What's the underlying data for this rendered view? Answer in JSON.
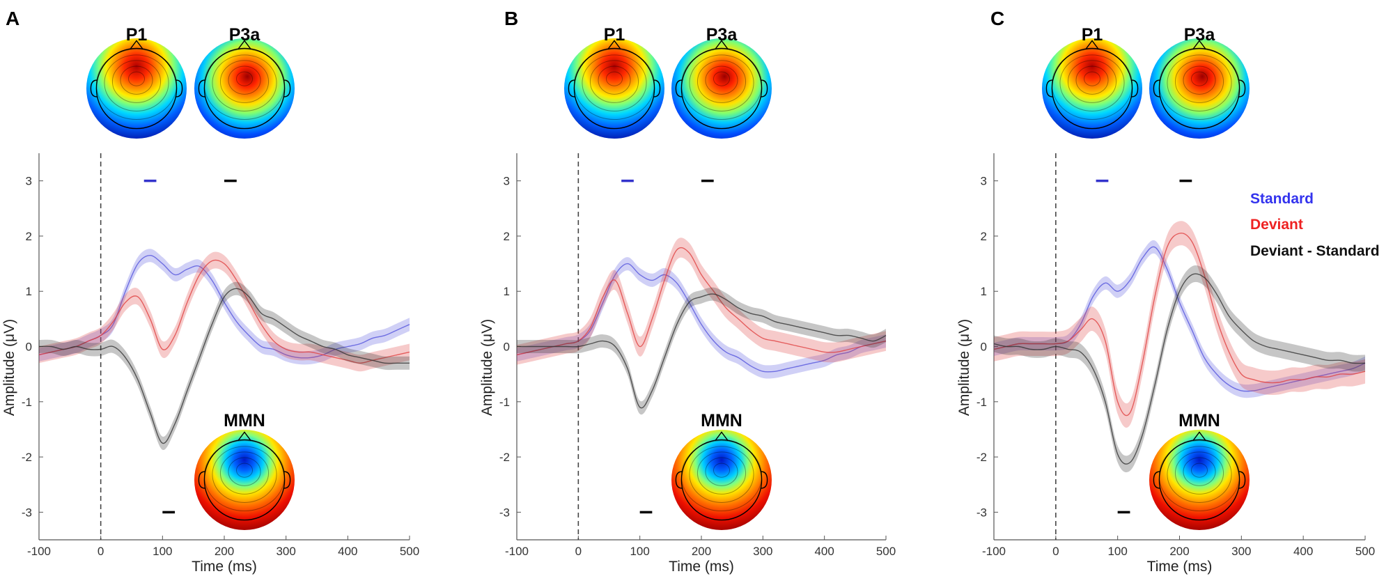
{
  "chart_data": [
    {
      "panel": "A",
      "type": "line",
      "xlabel": "Time (ms)",
      "ylabel": "Amplitude (μV)",
      "xlim": [
        -100,
        500
      ],
      "ylim": [
        -3.5,
        3.5
      ],
      "xticks": [
        -100,
        0,
        100,
        200,
        300,
        400,
        500
      ],
      "yticks": [
        -3,
        -2,
        -1,
        0,
        1,
        2,
        3
      ],
      "x": [
        -100,
        -80,
        -60,
        -40,
        -20,
        0,
        20,
        40,
        60,
        80,
        100,
        120,
        140,
        160,
        180,
        200,
        220,
        240,
        260,
        280,
        300,
        320,
        340,
        360,
        380,
        400,
        420,
        440,
        460,
        480,
        500
      ],
      "series": [
        {
          "name": "Standard",
          "color": "#5555dd",
          "values": [
            -0.15,
            -0.1,
            -0.05,
            0.0,
            0.1,
            0.2,
            0.4,
            1.0,
            1.5,
            1.65,
            1.5,
            1.3,
            1.4,
            1.45,
            1.2,
            0.8,
            0.45,
            0.2,
            0.0,
            -0.05,
            -0.15,
            -0.2,
            -0.2,
            -0.15,
            -0.05,
            0.0,
            0.05,
            0.15,
            0.2,
            0.3,
            0.4
          ],
          "band": 0.12
        },
        {
          "name": "Deviant",
          "color": "#e04040",
          "values": [
            -0.15,
            -0.1,
            -0.05,
            0.0,
            0.1,
            0.2,
            0.45,
            0.8,
            0.9,
            0.5,
            -0.05,
            0.2,
            0.8,
            1.3,
            1.55,
            1.5,
            1.2,
            0.8,
            0.4,
            0.1,
            -0.05,
            -0.1,
            -0.1,
            -0.15,
            -0.2,
            -0.25,
            -0.3,
            -0.25,
            -0.2,
            -0.15,
            -0.1
          ],
          "band": 0.15
        },
        {
          "name": "Deviant - Standard",
          "color": "#333333",
          "values": [
            0.0,
            0.0,
            -0.05,
            0.0,
            -0.05,
            -0.05,
            0.0,
            -0.2,
            -0.6,
            -1.2,
            -1.75,
            -1.4,
            -0.8,
            -0.2,
            0.4,
            0.9,
            1.05,
            0.9,
            0.6,
            0.5,
            0.35,
            0.2,
            0.1,
            0.0,
            -0.05,
            -0.15,
            -0.2,
            -0.25,
            -0.3,
            -0.3,
            -0.3
          ],
          "band": 0.12
        }
      ],
      "component_bars": [
        {
          "name": "P1",
          "color": "#3333cc",
          "x1": 70,
          "x2": 90,
          "y": 3
        },
        {
          "name": "P3a",
          "color": "#000000",
          "x1": 200,
          "x2": 220,
          "y": 3
        },
        {
          "name": "MMN",
          "color": "#000000",
          "x1": 100,
          "x2": 120,
          "y": -3
        }
      ],
      "topo_labels": [
        "P1",
        "P3a",
        "MMN"
      ]
    },
    {
      "panel": "B",
      "type": "line",
      "xlabel": "Time (ms)",
      "ylabel": "Amplitude (μV)",
      "xlim": [
        -100,
        500
      ],
      "ylim": [
        -3.5,
        3.5
      ],
      "xticks": [
        -100,
        0,
        100,
        200,
        300,
        400,
        500
      ],
      "yticks": [
        -3,
        -2,
        -1,
        0,
        1,
        2,
        3
      ],
      "x": [
        -100,
        -80,
        -60,
        -40,
        -20,
        0,
        20,
        40,
        60,
        80,
        100,
        120,
        140,
        160,
        180,
        200,
        220,
        240,
        260,
        280,
        300,
        320,
        340,
        360,
        380,
        400,
        420,
        440,
        460,
        480,
        500
      ],
      "series": [
        {
          "name": "Standard",
          "color": "#5555dd",
          "values": [
            -0.15,
            -0.1,
            -0.05,
            0.0,
            0.05,
            0.1,
            0.3,
            0.8,
            1.3,
            1.5,
            1.3,
            1.2,
            1.3,
            1.15,
            0.8,
            0.4,
            0.1,
            -0.1,
            -0.2,
            -0.35,
            -0.45,
            -0.45,
            -0.4,
            -0.35,
            -0.3,
            -0.25,
            -0.15,
            -0.1,
            0.0,
            0.05,
            0.1
          ],
          "band": 0.12
        },
        {
          "name": "Deviant",
          "color": "#e04040",
          "values": [
            -0.15,
            -0.1,
            -0.05,
            0.0,
            0.05,
            0.1,
            0.35,
            0.9,
            1.2,
            0.6,
            0.0,
            0.5,
            1.2,
            1.75,
            1.7,
            1.3,
            1.0,
            0.7,
            0.5,
            0.3,
            0.15,
            0.1,
            0.05,
            0.0,
            -0.05,
            -0.1,
            -0.1,
            -0.05,
            0.0,
            0.05,
            0.1
          ],
          "band": 0.18
        },
        {
          "name": "Deviant - Standard",
          "color": "#333333",
          "values": [
            0.0,
            0.0,
            0.0,
            0.0,
            0.0,
            0.0,
            0.05,
            0.1,
            0.0,
            -0.4,
            -1.1,
            -0.8,
            -0.2,
            0.4,
            0.8,
            0.9,
            0.95,
            0.85,
            0.7,
            0.6,
            0.55,
            0.45,
            0.4,
            0.35,
            0.3,
            0.25,
            0.2,
            0.2,
            0.15,
            0.1,
            0.2
          ],
          "band": 0.12
        }
      ],
      "component_bars": [
        {
          "name": "P1",
          "color": "#3333cc",
          "x1": 70,
          "x2": 90,
          "y": 3
        },
        {
          "name": "P3a",
          "color": "#000000",
          "x1": 200,
          "x2": 220,
          "y": 3
        },
        {
          "name": "MMN",
          "color": "#000000",
          "x1": 100,
          "x2": 120,
          "y": -3
        }
      ],
      "topo_labels": [
        "P1",
        "P3a",
        "MMN"
      ]
    },
    {
      "panel": "C",
      "type": "line",
      "xlabel": "Time (ms)",
      "ylabel": "Amplitude (μV)",
      "xlim": [
        -100,
        500
      ],
      "ylim": [
        -3.5,
        3.5
      ],
      "xticks": [
        -100,
        0,
        100,
        200,
        300,
        400,
        500
      ],
      "yticks": [
        -3,
        -2,
        -1,
        0,
        1,
        2,
        3
      ],
      "x": [
        -100,
        -80,
        -60,
        -40,
        -20,
        0,
        20,
        40,
        60,
        80,
        100,
        120,
        140,
        160,
        180,
        200,
        220,
        240,
        260,
        280,
        300,
        320,
        340,
        360,
        380,
        400,
        420,
        440,
        460,
        480,
        500
      ],
      "series": [
        {
          "name": "Standard",
          "color": "#5555dd",
          "values": [
            -0.05,
            0.0,
            0.05,
            0.05,
            0.05,
            0.05,
            0.1,
            0.4,
            0.9,
            1.15,
            1.0,
            1.2,
            1.6,
            1.8,
            1.4,
            0.8,
            0.3,
            -0.2,
            -0.5,
            -0.7,
            -0.8,
            -0.8,
            -0.75,
            -0.7,
            -0.65,
            -0.6,
            -0.55,
            -0.5,
            -0.45,
            -0.4,
            -0.3
          ],
          "band": 0.12
        },
        {
          "name": "Deviant",
          "color": "#e04040",
          "values": [
            -0.05,
            0.0,
            0.05,
            0.05,
            0.05,
            0.05,
            0.1,
            0.3,
            0.5,
            0.1,
            -1.0,
            -1.2,
            -0.3,
            0.9,
            1.8,
            2.05,
            1.9,
            1.3,
            0.5,
            -0.1,
            -0.5,
            -0.6,
            -0.65,
            -0.65,
            -0.6,
            -0.6,
            -0.55,
            -0.55,
            -0.5,
            -0.5,
            -0.45
          ],
          "band": 0.22
        },
        {
          "name": "Deviant - Standard",
          "color": "#333333",
          "values": [
            0.05,
            0.0,
            0.0,
            -0.05,
            -0.05,
            0.0,
            -0.05,
            -0.1,
            -0.4,
            -1.0,
            -1.95,
            -2.1,
            -1.6,
            -0.7,
            0.3,
            1.0,
            1.3,
            1.25,
            0.95,
            0.55,
            0.3,
            0.1,
            0.0,
            -0.05,
            -0.1,
            -0.15,
            -0.2,
            -0.25,
            -0.25,
            -0.3,
            -0.3
          ],
          "band": 0.15
        }
      ],
      "component_bars": [
        {
          "name": "P1",
          "color": "#3333cc",
          "x1": 65,
          "x2": 85,
          "y": 3
        },
        {
          "name": "P3a",
          "color": "#000000",
          "x1": 200,
          "x2": 220,
          "y": 3
        },
        {
          "name": "MMN",
          "color": "#000000",
          "x1": 100,
          "x2": 120,
          "y": -3
        }
      ],
      "topo_labels": [
        "P1",
        "P3a",
        "MMN"
      ],
      "legend": [
        "Standard",
        "Deviant",
        "Deviant - Standard"
      ]
    }
  ],
  "topo_colors": {
    "scale": [
      "#00008f",
      "#0030ff",
      "#00c8ff",
      "#7aff80",
      "#ffe000",
      "#ff4000",
      "#9c0000"
    ],
    "outline": "#000000"
  }
}
